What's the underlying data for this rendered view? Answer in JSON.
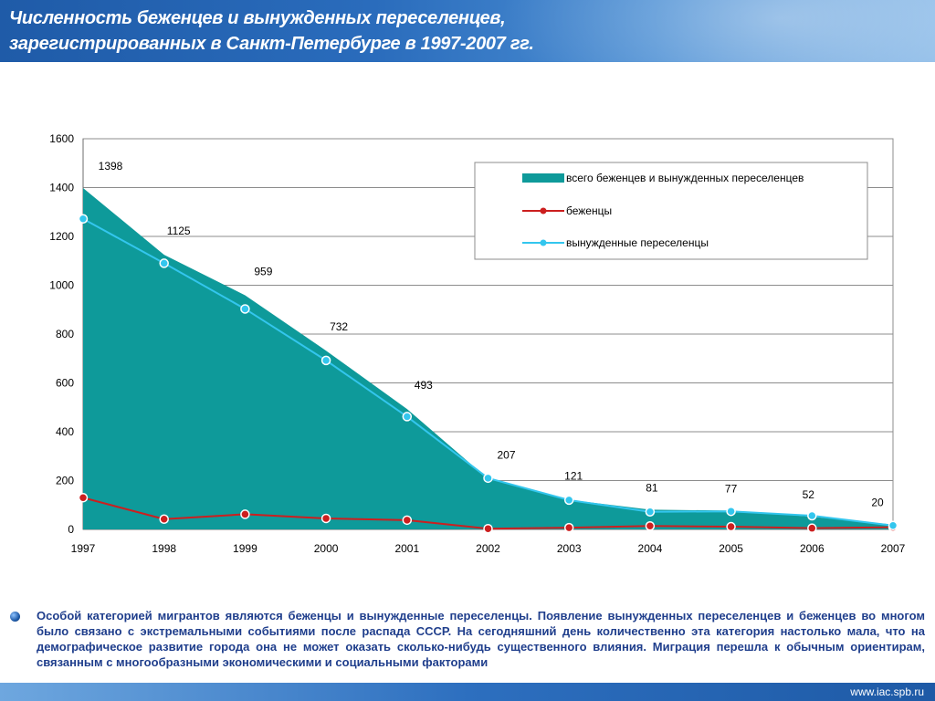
{
  "header": {
    "title_line1": "Численность беженцев и вынужденных переселенцев,",
    "title_line2": "зарегистрированных в Санкт-Петербурге в 1997-2007 гг."
  },
  "chart_data": {
    "type": "area",
    "categories": [
      "1997",
      "1998",
      "1999",
      "2000",
      "2001",
      "2002",
      "2003",
      "2004",
      "2005",
      "2006",
      "2007"
    ],
    "ylim": [
      0,
      1600
    ],
    "yticks": [
      0,
      200,
      400,
      600,
      800,
      1000,
      1200,
      1400,
      1600
    ],
    "grid": true,
    "legend_position": "top-right",
    "series": [
      {
        "name": "всего беженцев и вынужденных переселенцев",
        "kind": "area",
        "color": "#0e9a9a",
        "values": [
          1398,
          1125,
          959,
          732,
          493,
          207,
          121,
          81,
          77,
          52,
          20
        ],
        "labels": [
          "1398",
          "1125",
          "959",
          "732",
          "493",
          "207",
          "121",
          "81",
          "77",
          "52",
          "20"
        ]
      },
      {
        "name": "беженцы",
        "kind": "line",
        "color": "#cc1f1f",
        "values": [
          130,
          42,
          62,
          45,
          38,
          3,
          7,
          14,
          11,
          5,
          9
        ]
      },
      {
        "name": "вынужденные переселенцы",
        "kind": "line",
        "color": "#33c6ee",
        "values": [
          1272,
          1090,
          903,
          692,
          462,
          210,
          120,
          72,
          74,
          56,
          16
        ]
      }
    ]
  },
  "caption": "Особой категорией мигрантов являются беженцы и вынужденные переселенцы. Появление вынужденных переселенцев и беженцев во многом было связано с экстремальными событиями после распада СССР. На сегодняшний день количественно эта категория настолько мала, что на демографическое развитие города она не может оказать сколько-нибудь существенного влияния. Миграция перешла к обычным ориентирам, связанным с многообразными экономическими и социальными факторами",
  "footer": {
    "url": "www.iac.spb.ru"
  }
}
